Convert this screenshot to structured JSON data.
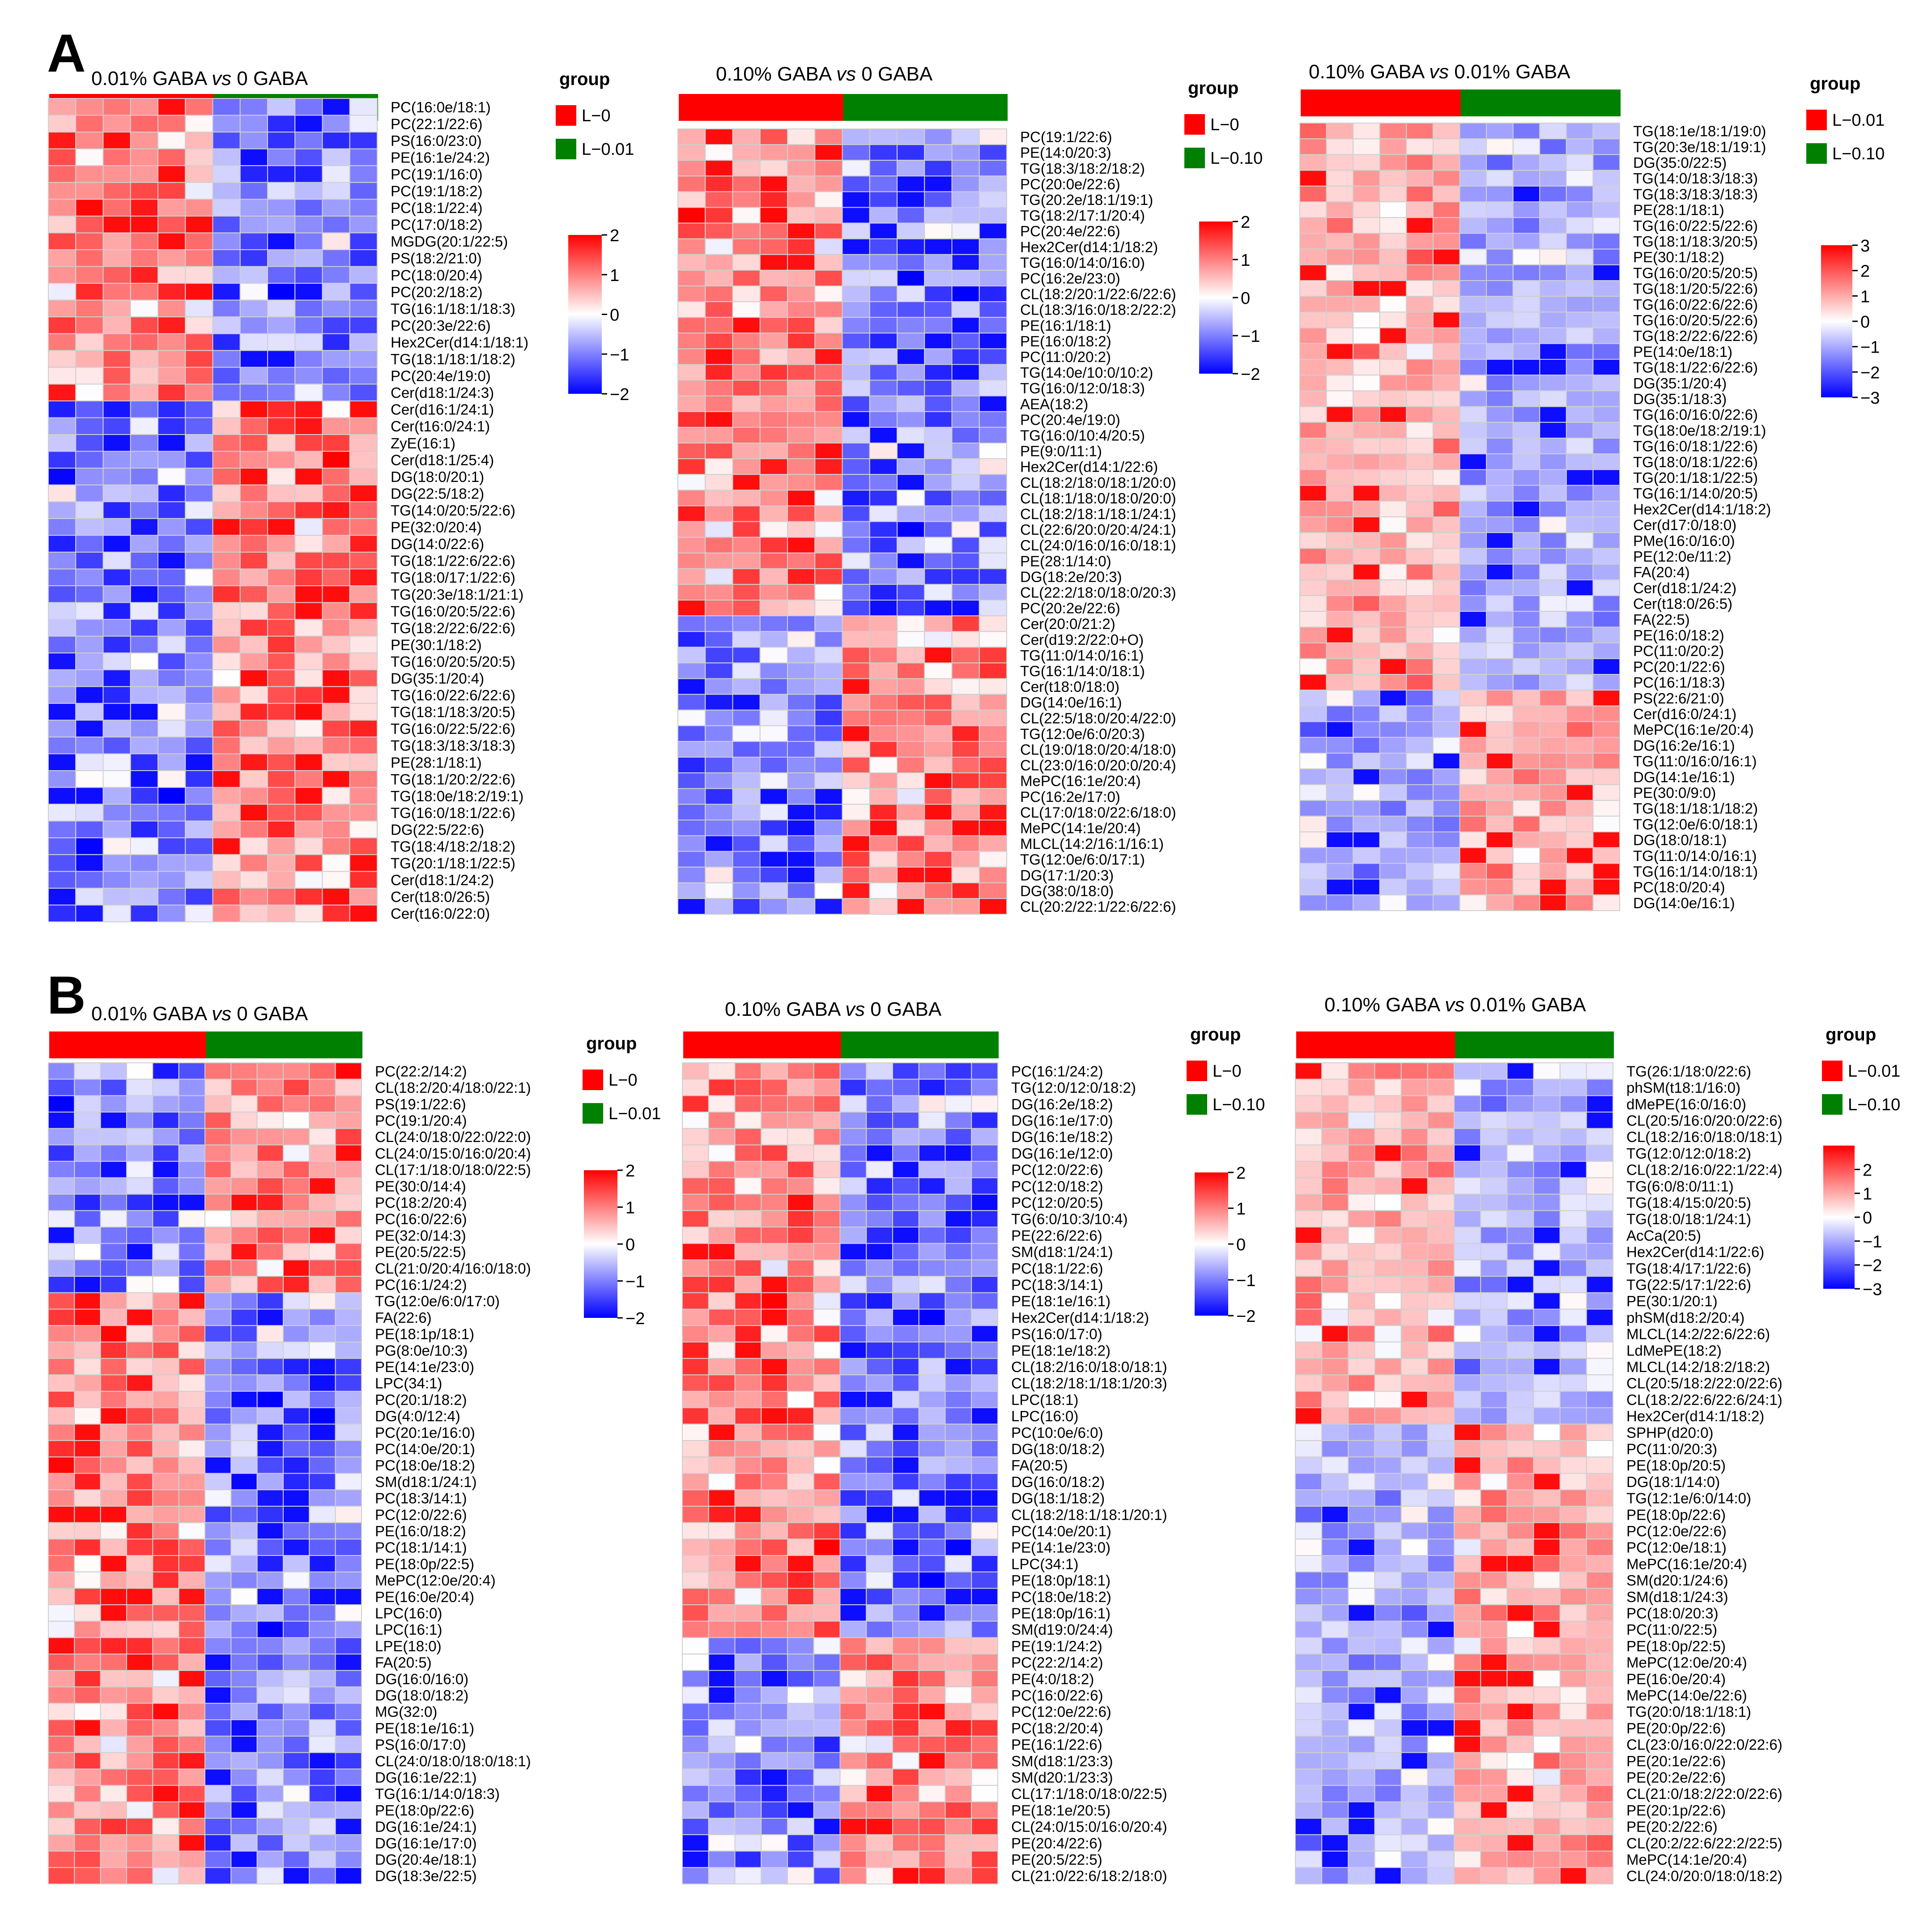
{
  "figure": {
    "panel_labels": [
      "A",
      "B"
    ],
    "group_legend_title": "group",
    "colors": {
      "group_high": "#ff0000",
      "group_low": "#008000",
      "scale_high": "#ff0000",
      "scale_mid": "#ffffff",
      "scale_low": "#0000ff",
      "cell_border": "#cfcfcf"
    }
  },
  "chart_data": [
    {
      "panel": "A",
      "type": "heatmap",
      "title": "0.01% GABA vs 0 GABA",
      "title_parts": [
        "0.01% GABA ",
        "vs",
        " 0 GABA"
      ],
      "groups": [
        {
          "name": "L−0",
          "color": "#ff0000",
          "n": 6
        },
        {
          "name": "L−0.01",
          "color": "#008000",
          "n": 6
        }
      ],
      "scale": {
        "min": -2,
        "max": 2,
        "ticks": [
          2,
          1,
          0,
          -1,
          -2
        ]
      },
      "block": {
        "split": 18,
        "high_first": true
      },
      "rows": [
        "PC(16:0e/18:1)",
        "PC(22:1/22:6)",
        "PS(16:0/23:0)",
        "PE(16:1e/24:2)",
        "PC(19:1/16:0)",
        "PC(19:1/18:2)",
        "PC(18:1/22:4)",
        "PC(17:0/18:2)",
        "MGDG(20:1/22:5)",
        "PS(18:2/21:0)",
        "PC(18:0/20:4)",
        "PC(20:2/18:2)",
        "TG(16:1/18:1/18:3)",
        "PC(20:3e/22:6)",
        "Hex2Cer(d14:1/18:1)",
        "TG(18:1/18:1/18:2)",
        "PC(20:4e/19:0)",
        "Cer(d18:1/24:3)",
        "Cer(d16:1/24:1)",
        "Cer(t16:0/24:1)",
        "ZyE(16:1)",
        "Cer(d18:1/25:4)",
        "DG(18:0/20:1)",
        "DG(22:5/18:2)",
        "TG(14:0/20:5/22:6)",
        "PE(32:0/20:4)",
        "DG(14:0/22:6)",
        "TG(18:1/22:6/22:6)",
        "TG(18:0/17:1/22:6)",
        "TG(20:3e/18:1/21:1)",
        "TG(16:0/20:5/22:6)",
        "TG(18:2/22:6/22:6)",
        "PE(30:1/18:2)",
        "TG(16:0/20:5/20:5)",
        "DG(35:1/20:4)",
        "TG(16:0/22:6/22:6)",
        "TG(18:1/18:3/20:5)",
        "TG(16:0/22:5/22:6)",
        "TG(18:3/18:3/18:3)",
        "PE(28:1/18:1)",
        "TG(18:1/20:2/22:6)",
        "TG(18:0e/18:2/19:1)",
        "TG(16:0/18:1/22:6)",
        "DG(22:5/22:6)",
        "TG(18:4/18:2/18:2)",
        "TG(20:1/18:1/22:5)",
        "Cer(d18:1/24:2)",
        "Cer(t18:0/26:5)",
        "Cer(t16:0/22:0)"
      ]
    },
    {
      "panel": "A",
      "type": "heatmap",
      "title": "0.10% GABA vs 0 GABA",
      "title_parts": [
        "0.10% GABA ",
        "vs",
        " 0 GABA"
      ],
      "groups": [
        {
          "name": "L−0",
          "color": "#ff0000",
          "n": 6
        },
        {
          "name": "L−0.10",
          "color": "#008000",
          "n": 6
        }
      ],
      "scale": {
        "min": -2,
        "max": 2,
        "ticks": [
          2,
          1,
          0,
          -1,
          -2
        ]
      },
      "block": {
        "split": 31,
        "high_first": true
      },
      "rows": [
        "PC(19:1/22:6)",
        "PE(14:0/20:3)",
        "TG(18:3/18:2/18:2)",
        "PC(20:0e/22:6)",
        "TG(20:2e/18:1/19:1)",
        "TG(18:2/17:1/20:4)",
        "PC(20:4e/22:6)",
        "Hex2Cer(d14:1/18:2)",
        "TG(16:0/14:0/16:0)",
        "PC(16:2e/23:0)",
        "CL(18:2/20:1/22:6/22:6)",
        "CL(18:3/16:0/18:2/22:2)",
        "PE(16:1/18:1)",
        "PE(16:0/18:2)",
        "PC(11:0/20:2)",
        "TG(14:0e/10:0/10:2)",
        "TG(16:0/12:0/18:3)",
        "AEA(18:2)",
        "PC(20:4e/19:0)",
        "TG(16:0/10:4/20:5)",
        "PE(9:0/11:1)",
        "Hex2Cer(d14:1/22:6)",
        "CL(18:2/18:0/18:1/20:0)",
        "CL(18:1/18:0/18:0/20:0)",
        "CL(18:2/18:1/18:1/24:1)",
        "CL(22:6/20:0/20:4/24:1)",
        "CL(24:0/16:0/16:0/18:1)",
        "PE(28:1/14:0)",
        "DG(18:2e/20:3)",
        "CL(22:2/18:0/18:0/20:3)",
        "PC(20:2e/22:6)",
        "Cer(20:0/21:2)",
        "Cer(d19:2/22:0+O)",
        "TG(11:0/14:0/16:1)",
        "TG(16:1/14:0/18:1)",
        "Cer(t18:0/18:0)",
        "DG(14:0e/16:1)",
        "CL(22:5/18:0/20:4/22:0)",
        "TG(12:0e/6:0/20:3)",
        "CL(19:0/18:0/20:4/18:0)",
        "CL(23:0/16:0/20:0/20:4)",
        "MePC(16:1e/20:4)",
        "PC(16:2e/17:0)",
        "CL(17:0/18:0/22:6/18:0)",
        "MePC(14:1e/20:4)",
        "MLCL(14:2/16:1/16:1)",
        "TG(12:0e/6:0/17:1)",
        "DG(17:1/20:3)",
        "DG(38:0/18:0)",
        "CL(20:2/22:1/22:6/22:6)"
      ]
    },
    {
      "panel": "A",
      "type": "heatmap",
      "title": "0.10% GABA vs 0.01% GABA",
      "title_parts": [
        "0.10% GABA ",
        "vs",
        " 0.01% GABA"
      ],
      "groups": [
        {
          "name": "L−0.01",
          "color": "#ff0000",
          "n": 6
        },
        {
          "name": "L−0.10",
          "color": "#008000",
          "n": 6
        }
      ],
      "scale": {
        "min": -3,
        "max": 3,
        "ticks": [
          3,
          2,
          1,
          0,
          -1,
          -2,
          -3
        ]
      },
      "block": {
        "split": 36,
        "high_first": true
      },
      "rows": [
        "TG(18:1e/18:1/19:0)",
        "TG(20:3e/18:1/19:1)",
        "DG(35:0/22:5)",
        "TG(14:0/18:3/18:3)",
        "TG(18:3/18:3/18:3)",
        "PE(28:1/18:1)",
        "TG(16:0/22:5/22:6)",
        "TG(18:1/18:3/20:5)",
        "PE(30:1/18:2)",
        "TG(16:0/20:5/20:5)",
        "TG(18:1/20:5/22:6)",
        "TG(16:0/22:6/22:6)",
        "TG(16:0/20:5/22:6)",
        "TG(18:2/22:6/22:6)",
        "PE(14:0e/18:1)",
        "TG(18:1/22:6/22:6)",
        "DG(35:1/20:4)",
        "DG(35:1/18:3)",
        "TG(16:0/16:0/22:6)",
        "TG(18:0e/18:2/19:1)",
        "TG(16:0/18:1/22:6)",
        "TG(18:0/18:1/22:6)",
        "TG(20:1/18:1/22:5)",
        "TG(16:1/14:0/20:5)",
        "Hex2Cer(d14:1/18:2)",
        "Cer(d17:0/18:0)",
        "PMe(16:0/16:0)",
        "PE(12:0e/11:2)",
        "FA(20:4)",
        "Cer(d18:1/24:2)",
        "Cer(t18:0/26:5)",
        "FA(22:5)",
        "PE(16:0/18:2)",
        "PC(11:0/20:2)",
        "PC(20:1/22:6)",
        "PC(16:1/18:3)",
        "PS(22:6/21:0)",
        "Cer(d16:0/24:1)",
        "MePC(16:1e/20:4)",
        "DG(16:2e/16:1)",
        "TG(11:0/16:0/16:1)",
        "DG(14:1e/16:1)",
        "PE(30:0/9:0)",
        "TG(18:1/18:1/18:2)",
        "TG(12:0e/6:0/18:1)",
        "DG(18:0/18:1)",
        "TG(11:0/14:0/16:1)",
        "TG(16:1/14:0/18:1)",
        "PC(18:0/20:4)",
        "DG(14:0e/16:1)"
      ]
    },
    {
      "panel": "B",
      "type": "heatmap",
      "title": "0.01% GABA vs 0 GABA",
      "title_parts": [
        "0.01% GABA ",
        "vs",
        " 0 GABA"
      ],
      "groups": [
        {
          "name": "L−0",
          "color": "#ff0000",
          "n": 6
        },
        {
          "name": "L−0.01",
          "color": "#008000",
          "n": 6
        }
      ],
      "scale": {
        "min": -2,
        "max": 2,
        "ticks": [
          2,
          1,
          0,
          -1,
          -2
        ]
      },
      "block": {
        "split": 14,
        "high_first": false
      },
      "rows": [
        "PC(22:2/14:2)",
        "CL(18:2/20:4/18:0/22:1)",
        "PS(19:1/22:6)",
        "PC(19:1/20:4)",
        "CL(24:0/18:0/22:0/22:0)",
        "CL(24:0/15:0/16:0/20:4)",
        "CL(17:1/18:0/18:0/22:5)",
        "PE(30:0/14:4)",
        "PC(18:2/20:4)",
        "PC(16:0/22:6)",
        "PE(32:0/14:3)",
        "PE(20:5/22:5)",
        "CL(21:0/20:4/16:0/18:0)",
        "PC(16:1/24:2)",
        "TG(12:0e/6:0/17:0)",
        "FA(22:6)",
        "PE(18:1p/18:1)",
        "PG(8:0e/10:3)",
        "PE(14:1e/23:0)",
        "LPC(34:1)",
        "PC(20:1/18:2)",
        "DG(4:0/12:4)",
        "PC(20:1e/16:0)",
        "PC(14:0e/20:1)",
        "PC(18:0e/18:2)",
        "SM(d18:1/24:1)",
        "PC(18:3/14:1)",
        "PC(12:0/22:6)",
        "PE(16:0/18:2)",
        "PC(18:1/14:1)",
        "PE(18:0p/22:5)",
        "MePC(12:0e/20:4)",
        "PE(16:0e/20:4)",
        "LPC(16:0)",
        "LPC(16:1)",
        "LPE(18:0)",
        "FA(20:5)",
        "DG(16:0/16:0)",
        "DG(18:0/18:2)",
        "MG(32:0)",
        "PE(18:1e/16:1)",
        "PS(16:0/17:0)",
        "CL(24:0/18:0/18:0/18:1)",
        "DG(16:1e/22:1)",
        "TG(16:1/14:0/18:3)",
        "PE(18:0p/22:6)",
        "DG(16:1e/24:1)",
        "DG(16:1e/17:0)",
        "DG(20:4e/18:1)",
        "DG(18:3e/22:5)"
      ]
    },
    {
      "panel": "B",
      "type": "heatmap",
      "title": "0.10% GABA vs 0 GABA",
      "title_parts": [
        "0.10% GABA ",
        "vs",
        " 0 GABA"
      ],
      "groups": [
        {
          "name": "L−0",
          "color": "#ff0000",
          "n": 6
        },
        {
          "name": "L−0.10",
          "color": "#008000",
          "n": 6
        }
      ],
      "scale": {
        "min": -2,
        "max": 2,
        "ticks": [
          2,
          1,
          0,
          -1,
          -2
        ]
      },
      "block": {
        "split": 35,
        "high_first": true
      },
      "rows": [
        "PC(16:1/24:2)",
        "TG(12:0/12:0/18:2)",
        "DG(16:2e/18:2)",
        "DG(16:1e/17:0)",
        "DG(16:1e/18:2)",
        "DG(16:1e/12:0)",
        "PC(12:0/22:6)",
        "PC(12:0/18:2)",
        "PC(12:0/20:5)",
        "TG(6:0/10:3/10:4)",
        "PE(22:6/22:6)",
        "SM(d18:1/24:1)",
        "PC(18:1/22:6)",
        "PC(18:3/14:1)",
        "PE(18:1e/16:1)",
        "Hex2Cer(d14:1/18:2)",
        "PS(16:0/17:0)",
        "PE(18:1e/18:2)",
        "CL(18:2/16:0/18:0/18:1)",
        "CL(18:2/18:1/18:1/20:3)",
        "LPC(18:1)",
        "LPC(16:0)",
        "PC(10:0e/6:0)",
        "DG(18:0/18:2)",
        "FA(20:5)",
        "DG(16:0/18:2)",
        "DG(18:1/18:2)",
        "CL(18:2/18:1/18:1/20:1)",
        "PC(14:0e/20:1)",
        "PE(14:1e/23:0)",
        "LPC(34:1)",
        "PE(18:0p/18:1)",
        "PC(18:0e/18:2)",
        "PE(18:0p/16:1)",
        "SM(d19:0/24:4)",
        "PE(19:1/24:2)",
        "PC(22:2/14:2)",
        "PE(4:0/18:2)",
        "PC(16:0/22:6)",
        "PC(12:0e/22:6)",
        "PC(18:2/20:4)",
        "PE(16:1/22:6)",
        "SM(d18:1/23:3)",
        "SM(d20:1/23:3)",
        "CL(17:1/18:0/18:0/22:5)",
        "PE(18:1e/20:5)",
        "CL(24:0/15:0/16:0/20:4)",
        "PE(20:4/22:6)",
        "PE(20:5/22:5)",
        "CL(21:0/22:6/18:2/18:0)"
      ]
    },
    {
      "panel": "B",
      "type": "heatmap",
      "title": "0.10% GABA vs 0.01% GABA",
      "title_parts": [
        "0.10% GABA ",
        "vs",
        " 0.01% GABA"
      ],
      "groups": [
        {
          "name": "L−0.01",
          "color": "#ff0000",
          "n": 6
        },
        {
          "name": "L−0.10",
          "color": "#008000",
          "n": 6
        }
      ],
      "scale": {
        "min": -3,
        "max": 3,
        "ticks": [
          2,
          1,
          0,
          -1,
          -2,
          -3
        ]
      },
      "block": {
        "split": 22,
        "high_first": true
      },
      "rows": [
        "TG(26:1/18:0/22:6)",
        "phSM(t18:1/16:0)",
        "dMePE(16:0/16:0)",
        "CL(20:5/16:0/20:0/22:6)",
        "CL(18:2/16:0/18:0/18:1)",
        "TG(12:0/12:0/18:2)",
        "CL(18:2/16:0/22:1/22:4)",
        "TG(6:0/8:0/11:1)",
        "TG(18:4/15:0/20:5)",
        "TG(18:0/18:1/24:1)",
        "AcCa(20:5)",
        "Hex2Cer(d14:1/22:6)",
        "TG(18:4/17:1/22:6)",
        "TG(22:5/17:1/22:6)",
        "PE(30:1/20:1)",
        "phSM(d18:2/20:4)",
        "MLCL(14:2/22:6/22:6)",
        "LdMePE(18:2)",
        "MLCL(14:2/18:2/18:2)",
        "CL(20:5/18:2/22:0/22:6)",
        "CL(18:2/22:6/22:6/24:1)",
        "Hex2Cer(d14:1/18:2)",
        "SPHP(d20:0)",
        "PC(11:0/20:3)",
        "PE(18:0p/20:5)",
        "DG(18:1/14:0)",
        "TG(12:1e/6:0/14:0)",
        "PE(18:0p/22:6)",
        "PC(12:0e/22:6)",
        "PC(12:0e/18:1)",
        "MePC(16:1e/20:4)",
        "SM(d20:1/24:6)",
        "SM(d18:1/24:3)",
        "PC(18:0/20:3)",
        "PC(11:0/22:5)",
        "PE(18:0p/22:5)",
        "MePC(12:0e/20:4)",
        "PE(16:0e/20:4)",
        "MePC(14:0e/22:6)",
        "TG(20:0/18:1/18:1)",
        "PE(20:0p/22:6)",
        "CL(23:0/16:0/22:0/22:6)",
        "PE(20:1e/22:6)",
        "PE(20:2e/22:6)",
        "CL(21:0/18:2/22:0/22:6)",
        "PE(20:1p/22:6)",
        "PE(20:2/22:6)",
        "CL(20:2/22:6/22:2/22:5)",
        "MePC(14:1e/20:4)",
        "CL(24:0/20:0/18:0/18:2)"
      ]
    }
  ]
}
